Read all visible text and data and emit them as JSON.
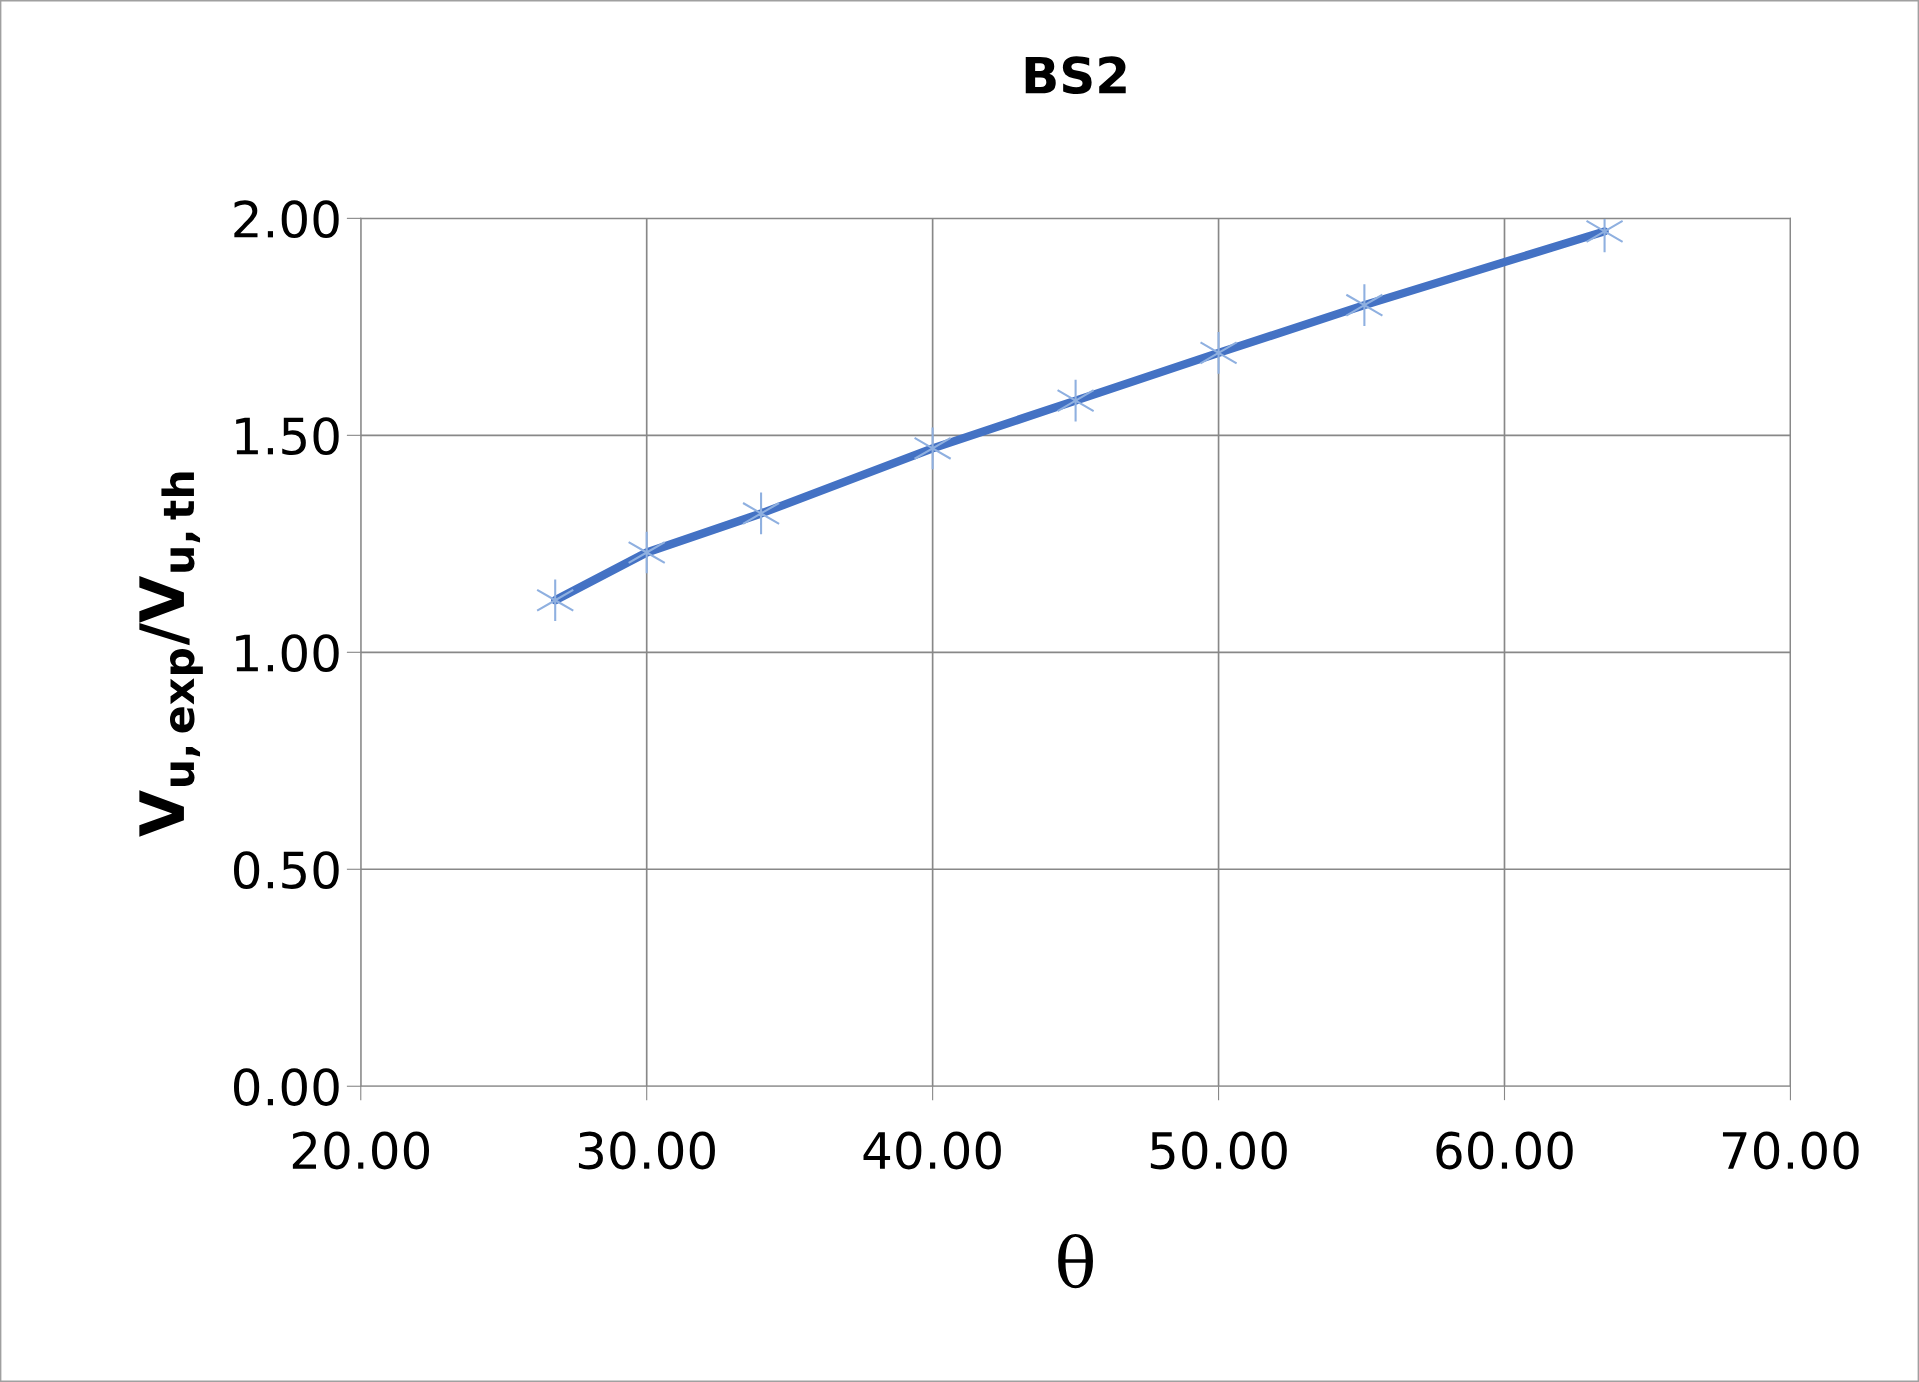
{
  "chart_data": {
    "type": "line",
    "title": "BS2",
    "xlabel": "θ",
    "ylabel": "V$_{u,exp}$/V$_{u,th}$",
    "x": [
      26.8,
      30.0,
      34.0,
      40.0,
      45.0,
      50.0,
      55.1,
      63.5
    ],
    "series": [
      {
        "color": "#4472c4",
        "values": [
          1.12,
          1.23,
          1.32,
          1.47,
          1.58,
          1.69,
          1.8,
          1.97
        ]
      }
    ],
    "xlim": [
      20,
      70
    ],
    "ylim": [
      0,
      2
    ],
    "xticks": [
      {
        "value": 20,
        "label": "20.00"
      },
      {
        "value": 30,
        "label": "30.00"
      },
      {
        "value": 40,
        "label": "40.00"
      },
      {
        "value": 50,
        "label": "50.00"
      },
      {
        "value": 60,
        "label": "60.00"
      },
      {
        "value": 70,
        "label": "70.00"
      }
    ],
    "yticks": [
      {
        "value": 0,
        "label": "0.00"
      },
      {
        "value": 0.5,
        "label": "0.50"
      },
      {
        "value": 1,
        "label": "1.00"
      },
      {
        "value": 1.5,
        "label": "1.50"
      },
      {
        "value": 2,
        "label": "2.00"
      }
    ],
    "grid": true,
    "marker": "cross",
    "line_style": "solid",
    "legend": false
  }
}
